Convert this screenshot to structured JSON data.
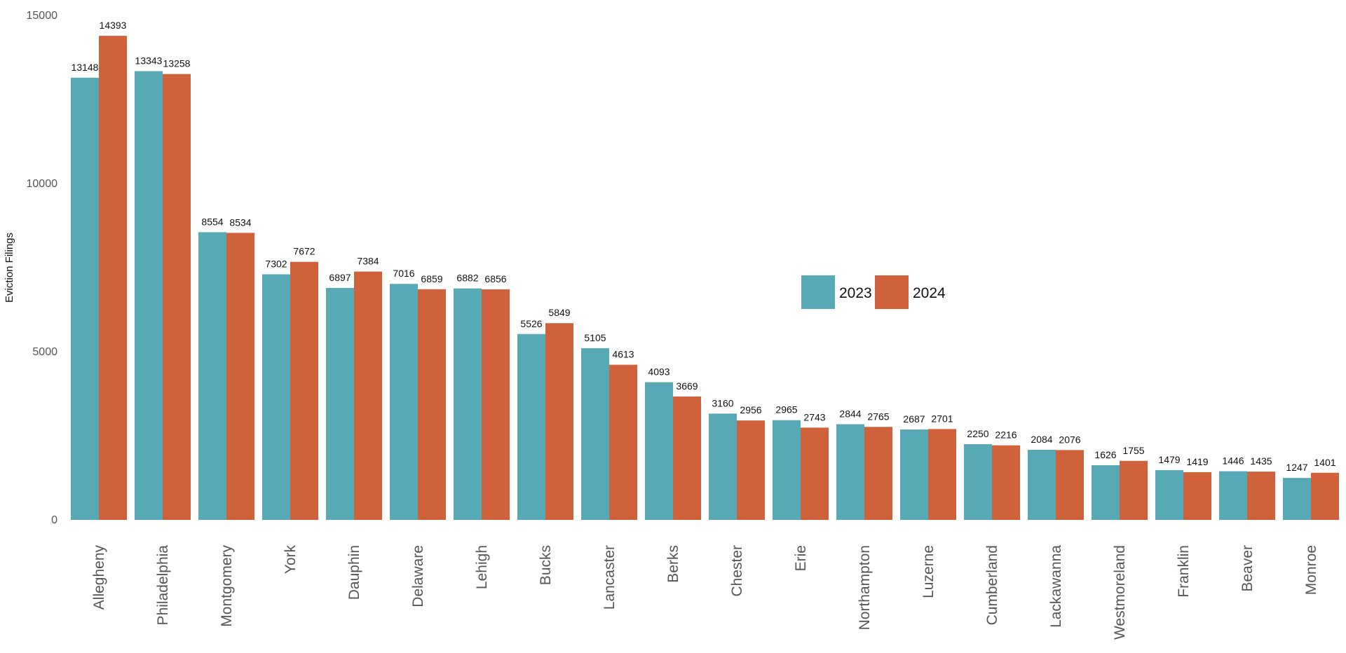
{
  "chart_data": {
    "type": "bar",
    "title": "",
    "xlabel": "",
    "ylabel": "Eviction Filings",
    "ylim": [
      0,
      15000
    ],
    "yticks": [
      0,
      5000,
      10000,
      15000
    ],
    "grid": false,
    "legend_position": "center-right",
    "categories": [
      "Allegheny",
      "Philadelphia",
      "Montgomery",
      "York",
      "Dauphin",
      "Delaware",
      "Lehigh",
      "Bucks",
      "Lancaster",
      "Berks",
      "Chester",
      "Erie",
      "Northampton",
      "Luzerne",
      "Cumberland",
      "Lackawanna",
      "Westmoreland",
      "Franklin",
      "Beaver",
      "Monroe"
    ],
    "series": [
      {
        "name": "2023",
        "color": "#57a9b5",
        "values": [
          13148,
          13343,
          8554,
          7302,
          6897,
          7016,
          6882,
          5526,
          5105,
          4093,
          3160,
          2965,
          2844,
          2687,
          2250,
          2084,
          1626,
          1479,
          1446,
          1247
        ]
      },
      {
        "name": "2024",
        "color": "#cf623b",
        "values": [
          14393,
          13258,
          8534,
          7672,
          7384,
          6859,
          6856,
          5849,
          4613,
          3669,
          2956,
          2743,
          2765,
          2701,
          2216,
          2076,
          1755,
          1419,
          1435,
          1401
        ]
      }
    ]
  }
}
